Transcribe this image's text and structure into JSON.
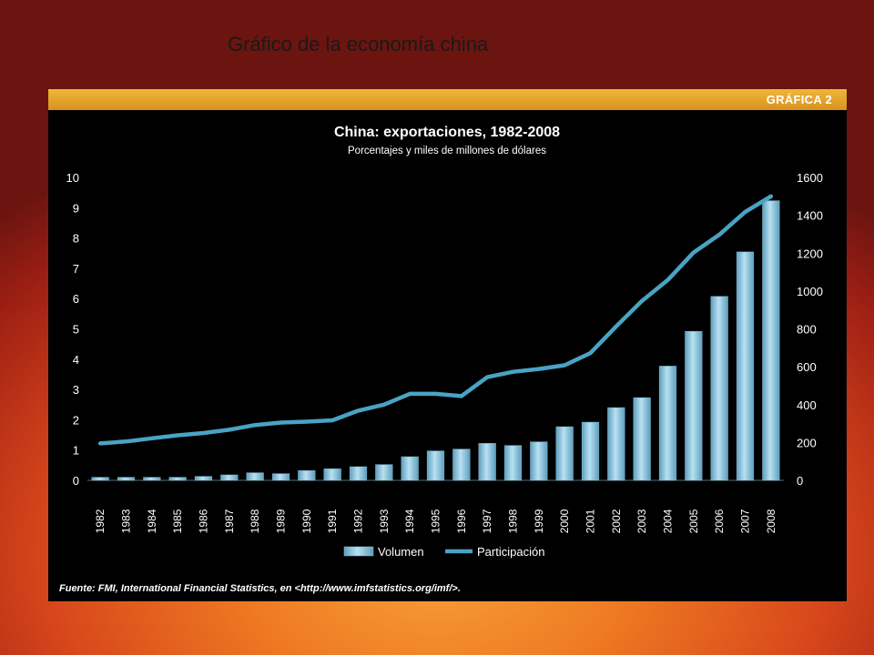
{
  "slide": {
    "title": "Gráfico de la economía china"
  },
  "header": {
    "label": "GRÁFICA 2"
  },
  "source": "Fuente: FMI, International Financial Statistics, en <http://www.imfstatistics.org/imf/>.",
  "colors": {
    "bar": "#8ec9e6",
    "line": "#4aa3c4",
    "band": "#e6a62a",
    "card": "#000000"
  },
  "chart_data": {
    "type": "bar",
    "title": "China: exportaciones, 1982-2008",
    "subtitle": "Porcentajes y miles de millones de dólares",
    "categories": [
      "1982",
      "1983",
      "1984",
      "1985",
      "1986",
      "1987",
      "1988",
      "1989",
      "1990",
      "1991",
      "1992",
      "1993",
      "1994",
      "1995",
      "1996",
      "1997",
      "1998",
      "1999",
      "2000",
      "2001",
      "2002",
      "2003",
      "2004",
      "2005",
      "2006",
      "2007",
      "2008"
    ],
    "series": [
      {
        "name": "Volumen",
        "type": "bar",
        "axis": "left",
        "values": [
          0.1,
          0.1,
          0.1,
          0.1,
          0.13,
          0.18,
          0.25,
          0.22,
          0.32,
          0.38,
          0.45,
          0.52,
          0.78,
          0.97,
          1.03,
          1.22,
          1.15,
          1.27,
          1.77,
          1.92,
          2.4,
          2.73,
          3.77,
          4.92,
          6.07,
          7.54,
          9.23
        ]
      },
      {
        "name": "Participación",
        "type": "line",
        "axis": "right",
        "values": [
          195,
          205,
          222,
          238,
          250,
          267,
          292,
          305,
          310,
          317,
          368,
          400,
          457,
          457,
          445,
          545,
          573,
          588,
          608,
          672,
          813,
          948,
          1058,
          1203,
          1298,
          1418,
          1500
        ]
      }
    ],
    "y_left": {
      "min": 0,
      "max": 10,
      "ticks": [
        "0",
        "1",
        "2",
        "3",
        "4",
        "5",
        "6",
        "7",
        "8",
        "9",
        "10"
      ]
    },
    "y_right": {
      "min": 0,
      "max": 1600,
      "ticks": [
        "0",
        "200",
        "400",
        "600",
        "800",
        "1000",
        "1200",
        "1400",
        "1600"
      ]
    },
    "legend": {
      "position": "bottom",
      "items": [
        "Volumen",
        "Participación"
      ]
    },
    "grid": false
  }
}
